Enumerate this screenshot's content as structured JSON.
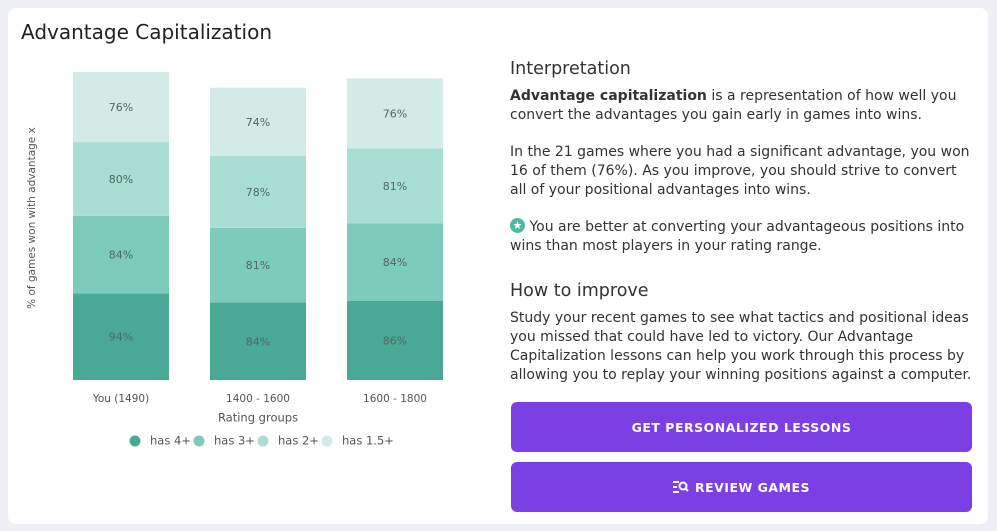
{
  "chart_data": {
    "type": "stacked-bar",
    "title": "Advantage Capitalization",
    "y_label": "% of games won with advantage x",
    "x_label": "Rating groups",
    "categories": [
      "You (1490)",
      "1400 - 1600",
      "1600 - 1800"
    ],
    "series": [
      {
        "name": "has 4+",
        "color": "#4aa994",
        "values": [
          94,
          84,
          86
        ],
        "value_labels": [
          "94%",
          "84%",
          "86%"
        ]
      },
      {
        "name": "has 3+",
        "color": "#7dcbbb",
        "values": [
          84,
          81,
          84
        ],
        "value_labels": [
          "84%",
          "81%",
          "84%"
        ]
      },
      {
        "name": "has 2+",
        "color": "#a9ded4",
        "values": [
          80,
          78,
          81
        ],
        "value_labels": [
          "80%",
          "78%",
          "81%"
        ]
      },
      {
        "name": "has 1.5+",
        "color": "#d3ebe6",
        "values": [
          76,
          74,
          76
        ],
        "value_labels": [
          "76%",
          "74%",
          "76%"
        ]
      }
    ]
  },
  "interpretation": {
    "heading": "Interpretation",
    "p1_bold": "Advantage capitalization",
    "p1_rest": " is a representation of how well you convert the advantages you gain early in games into wins.",
    "p2": "In the 21 games where you had a significant advantage, you won 16 of them (76%). As you improve, you should strive to convert all of your positional advantages into wins.",
    "p3": "You are better at converting your advantageous positions into wins than most players in your rating range."
  },
  "improve": {
    "heading": "How to improve",
    "text": "Study your recent games to see what tactics and positional ideas you missed that could have led to victory. Our Advantage Capitalization lessons can help you work through this process by allowing you to replay your winning positions against a computer."
  },
  "buttons": [
    "GET PERSONALIZED LESSONS",
    "REVIEW GAMES"
  ]
}
